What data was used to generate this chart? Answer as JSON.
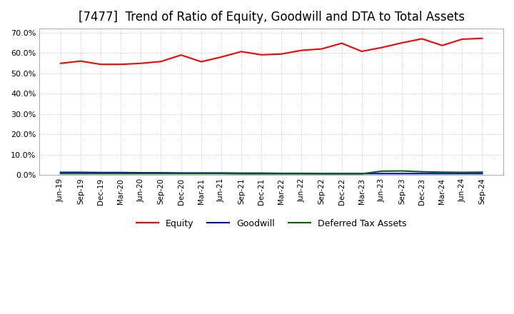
{
  "title": "[7477]  Trend of Ratio of Equity, Goodwill and DTA to Total Assets",
  "title_fontsize": 12,
  "ylim": [
    0.0,
    0.72
  ],
  "yticks": [
    0.0,
    0.1,
    0.2,
    0.3,
    0.4,
    0.5,
    0.6,
    0.7
  ],
  "x_labels": [
    "Jun-19",
    "Sep-19",
    "Dec-19",
    "Mar-20",
    "Jun-20",
    "Sep-20",
    "Dec-20",
    "Mar-21",
    "Jun-21",
    "Sep-21",
    "Dec-21",
    "Mar-22",
    "Jun-22",
    "Sep-22",
    "Dec-22",
    "Mar-23",
    "Jun-23",
    "Sep-23",
    "Dec-23",
    "Mar-24",
    "Jun-24",
    "Sep-24"
  ],
  "equity": [
    0.549,
    0.56,
    0.544,
    0.544,
    0.549,
    0.558,
    0.59,
    0.557,
    0.58,
    0.607,
    0.591,
    0.595,
    0.613,
    0.62,
    0.648,
    0.608,
    0.627,
    0.65,
    0.67,
    0.637,
    0.668,
    0.672
  ],
  "goodwill": [
    0.012,
    0.012,
    0.011,
    0.011,
    0.01,
    0.01,
    0.009,
    0.009,
    0.009,
    0.008,
    0.008,
    0.007,
    0.007,
    0.006,
    0.006,
    0.006,
    0.006,
    0.006,
    0.006,
    0.006,
    0.006,
    0.006
  ],
  "dta": [
    0.006,
    0.006,
    0.006,
    0.006,
    0.006,
    0.006,
    0.006,
    0.006,
    0.006,
    0.005,
    0.005,
    0.005,
    0.005,
    0.005,
    0.005,
    0.005,
    0.018,
    0.019,
    0.015,
    0.013,
    0.012,
    0.013
  ],
  "equity_color": "#ff0000",
  "goodwill_color": "#0000cc",
  "dta_color": "#006400",
  "bg_color": "#ffffff",
  "plot_bg_color": "#ffffff",
  "grid_color": "#aaaaaa",
  "legend_labels": [
    "Equity",
    "Goodwill",
    "Deferred Tax Assets"
  ]
}
